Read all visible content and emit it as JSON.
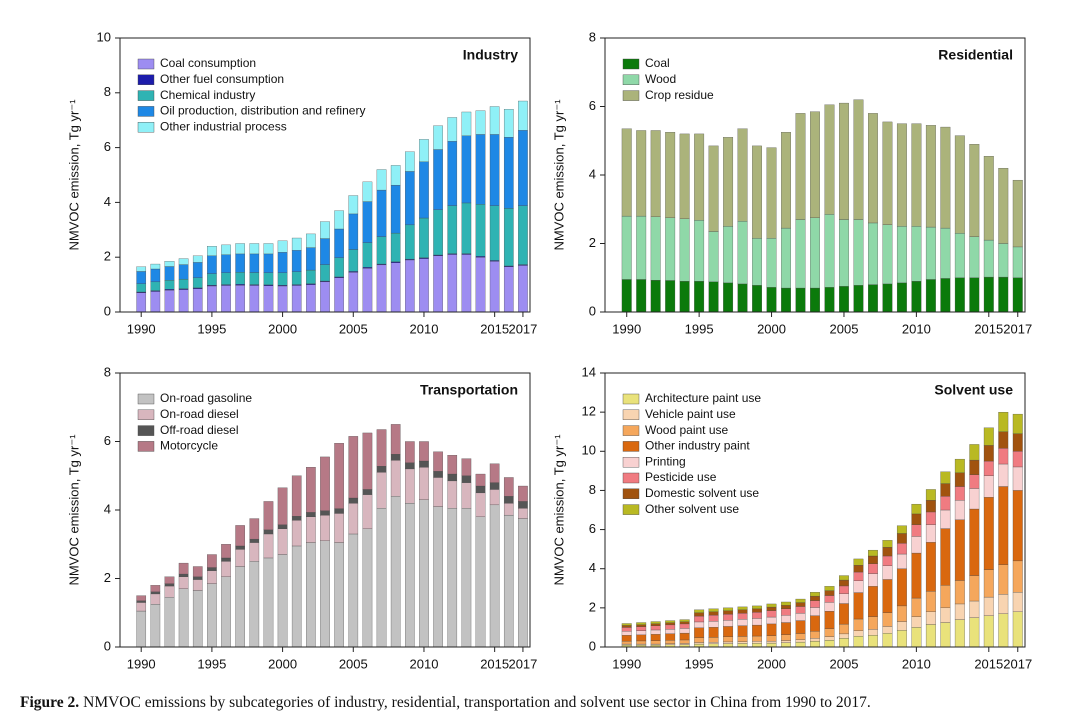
{
  "chart_data": [
    {
      "type": "stacked_bar",
      "title": "Industry",
      "ylabel": "NMVOC emission, Tg yr⁻¹",
      "x": [
        1990,
        1991,
        1992,
        1993,
        1994,
        1995,
        1996,
        1997,
        1998,
        1999,
        2000,
        2001,
        2002,
        2003,
        2004,
        2005,
        2006,
        2007,
        2008,
        2009,
        2010,
        2011,
        2012,
        2013,
        2014,
        2015,
        2016,
        2017
      ],
      "xlim": [
        1988.5,
        2017.5
      ],
      "xticks": [
        1990,
        1995,
        2000,
        2005,
        2010,
        2015,
        2017
      ],
      "ylim": [
        0,
        10
      ],
      "yticks": [
        0,
        2,
        4,
        6,
        8,
        10
      ],
      "legend": "upper left",
      "series": [
        {
          "name": "Coal consumption",
          "color": "#9d8df1",
          "values": [
            0.7,
            0.75,
            0.8,
            0.82,
            0.85,
            0.95,
            0.97,
            0.98,
            0.97,
            0.96,
            0.95,
            0.97,
            1.0,
            1.1,
            1.25,
            1.45,
            1.6,
            1.72,
            1.8,
            1.9,
            1.95,
            2.05,
            2.1,
            2.1,
            2.0,
            1.85,
            1.65,
            1.7
          ]
        },
        {
          "name": "Other fuel consumption",
          "color": "#1c1cab",
          "values": [
            0.03,
            0.03,
            0.03,
            0.03,
            0.03,
            0.03,
            0.03,
            0.03,
            0.03,
            0.03,
            0.03,
            0.03,
            0.03,
            0.03,
            0.03,
            0.03,
            0.03,
            0.03,
            0.03,
            0.03,
            0.03,
            0.03,
            0.03,
            0.03,
            0.03,
            0.03,
            0.03,
            0.03
          ]
        },
        {
          "name": "Chemical industry",
          "color": "#2fb3b3",
          "values": [
            0.3,
            0.32,
            0.33,
            0.35,
            0.37,
            0.42,
            0.43,
            0.44,
            0.44,
            0.44,
            0.45,
            0.47,
            0.5,
            0.6,
            0.7,
            0.8,
            0.9,
            1.0,
            1.05,
            1.25,
            1.45,
            1.65,
            1.75,
            1.85,
            1.9,
            2.0,
            2.1,
            2.15
          ]
        },
        {
          "name": "Oil production, distribution and refinery",
          "color": "#1e88e5",
          "values": [
            0.45,
            0.47,
            0.5,
            0.53,
            0.56,
            0.65,
            0.66,
            0.67,
            0.68,
            0.69,
            0.75,
            0.78,
            0.82,
            0.95,
            1.05,
            1.3,
            1.5,
            1.7,
            1.75,
            1.95,
            2.05,
            2.2,
            2.35,
            2.45,
            2.55,
            2.6,
            2.6,
            2.75
          ]
        },
        {
          "name": "Other industrial process",
          "color": "#8ff0f7",
          "values": [
            0.17,
            0.18,
            0.19,
            0.22,
            0.24,
            0.35,
            0.36,
            0.38,
            0.38,
            0.38,
            0.42,
            0.45,
            0.5,
            0.62,
            0.67,
            0.67,
            0.72,
            0.75,
            0.72,
            0.72,
            0.82,
            0.87,
            0.87,
            0.87,
            0.87,
            1.02,
            1.02,
            1.07
          ]
        }
      ]
    },
    {
      "type": "stacked_bar",
      "title": "Residential",
      "ylabel": "NMVOC emission, Tg yr⁻¹",
      "x": [
        1990,
        1991,
        1992,
        1993,
        1994,
        1995,
        1996,
        1997,
        1998,
        1999,
        2000,
        2001,
        2002,
        2003,
        2004,
        2005,
        2006,
        2007,
        2008,
        2009,
        2010,
        2011,
        2012,
        2013,
        2014,
        2015,
        2016,
        2017
      ],
      "xlim": [
        1988.5,
        2017.5
      ],
      "xticks": [
        1990,
        1995,
        2000,
        2005,
        2010,
        2015,
        2017
      ],
      "ylim": [
        0,
        8
      ],
      "yticks": [
        0,
        2,
        4,
        6,
        8
      ],
      "legend": "upper left",
      "series": [
        {
          "name": "Coal",
          "color": "#0b7a0b",
          "values": [
            0.95,
            0.95,
            0.93,
            0.92,
            0.9,
            0.9,
            0.88,
            0.85,
            0.82,
            0.78,
            0.72,
            0.7,
            0.7,
            0.7,
            0.72,
            0.75,
            0.78,
            0.8,
            0.82,
            0.85,
            0.9,
            0.95,
            0.98,
            1.0,
            1.0,
            1.02,
            1.02,
            1.0
          ]
        },
        {
          "name": "Wood",
          "color": "#8fd8a8",
          "values": [
            1.85,
            1.85,
            1.85,
            1.83,
            1.82,
            1.78,
            1.47,
            1.65,
            1.83,
            1.37,
            1.43,
            1.75,
            2.0,
            2.05,
            2.13,
            1.95,
            1.92,
            1.8,
            1.73,
            1.65,
            1.6,
            1.53,
            1.47,
            1.3,
            1.2,
            1.08,
            0.98,
            0.9
          ]
        },
        {
          "name": "Crop residue",
          "color": "#abb37b",
          "values": [
            2.55,
            2.5,
            2.52,
            2.5,
            2.48,
            2.52,
            2.5,
            2.6,
            2.7,
            2.7,
            2.65,
            2.8,
            3.1,
            3.1,
            3.2,
            3.4,
            3.5,
            3.2,
            3.0,
            3.0,
            3.0,
            2.97,
            2.95,
            2.85,
            2.7,
            2.45,
            2.2,
            1.95
          ]
        }
      ]
    },
    {
      "type": "stacked_bar",
      "title": "Transportation",
      "ylabel": "NMVOC emission, Tg yr⁻¹",
      "x": [
        1990,
        1991,
        1992,
        1993,
        1994,
        1995,
        1996,
        1997,
        1998,
        1999,
        2000,
        2001,
        2002,
        2003,
        2004,
        2005,
        2006,
        2007,
        2008,
        2009,
        2010,
        2011,
        2012,
        2013,
        2014,
        2015,
        2016,
        2017
      ],
      "xlim": [
        1988.5,
        2017.5
      ],
      "xticks": [
        1990,
        1995,
        2000,
        2005,
        2010,
        2015,
        2017
      ],
      "ylim": [
        0,
        8
      ],
      "yticks": [
        0,
        2,
        4,
        6,
        8
      ],
      "legend": "upper left",
      "series": [
        {
          "name": "On-road gasoline",
          "color": "#c2c2c2",
          "values": [
            1.05,
            1.25,
            1.45,
            1.7,
            1.65,
            1.85,
            2.05,
            2.35,
            2.5,
            2.6,
            2.7,
            2.95,
            3.05,
            3.1,
            3.05,
            3.3,
            3.45,
            4.05,
            4.4,
            4.2,
            4.3,
            4.1,
            4.05,
            4.05,
            3.8,
            4.15,
            3.85,
            3.75
          ]
        },
        {
          "name": "On-road diesel",
          "color": "#d8b6be",
          "values": [
            0.25,
            0.3,
            0.33,
            0.35,
            0.32,
            0.38,
            0.45,
            0.5,
            0.55,
            0.7,
            0.75,
            0.75,
            0.75,
            0.75,
            0.85,
            0.9,
            1.0,
            1.05,
            1.05,
            1.0,
            0.95,
            0.85,
            0.8,
            0.75,
            0.7,
            0.45,
            0.35,
            0.3
          ]
        },
        {
          "name": "Off-road diesel",
          "color": "#555555",
          "values": [
            0.05,
            0.06,
            0.07,
            0.08,
            0.08,
            0.09,
            0.1,
            0.1,
            0.1,
            0.12,
            0.12,
            0.12,
            0.13,
            0.13,
            0.14,
            0.15,
            0.15,
            0.18,
            0.18,
            0.18,
            0.18,
            0.18,
            0.2,
            0.2,
            0.2,
            0.2,
            0.2,
            0.2
          ]
        },
        {
          "name": "Motorcycle",
          "color": "#b67986",
          "values": [
            0.15,
            0.19,
            0.2,
            0.32,
            0.3,
            0.38,
            0.4,
            0.6,
            0.6,
            0.83,
            1.08,
            1.18,
            1.32,
            1.57,
            1.91,
            1.8,
            1.65,
            1.07,
            0.87,
            0.62,
            0.57,
            0.57,
            0.55,
            0.5,
            0.35,
            0.55,
            0.55,
            0.45
          ]
        }
      ]
    },
    {
      "type": "stacked_bar",
      "title": "Solvent use",
      "ylabel": "NMVOC emission, Tg yr⁻¹",
      "x": [
        1990,
        1991,
        1992,
        1993,
        1994,
        1995,
        1996,
        1997,
        1998,
        1999,
        2000,
        2001,
        2002,
        2003,
        2004,
        2005,
        2006,
        2007,
        2008,
        2009,
        2010,
        2011,
        2012,
        2013,
        2014,
        2015,
        2016,
        2017
      ],
      "xlim": [
        1988.5,
        2017.5
      ],
      "xticks": [
        1990,
        1995,
        2000,
        2005,
        2010,
        2015,
        2017
      ],
      "ylim": [
        0,
        14
      ],
      "yticks": [
        0,
        2,
        4,
        6,
        8,
        10,
        12,
        14
      ],
      "legend": "upper left",
      "series": [
        {
          "name": "Architecture paint use",
          "color": "#e9e27b",
          "values": [
            0.1,
            0.1,
            0.1,
            0.11,
            0.12,
            0.15,
            0.16,
            0.17,
            0.18,
            0.19,
            0.2,
            0.22,
            0.25,
            0.3,
            0.35,
            0.45,
            0.55,
            0.6,
            0.7,
            0.85,
            1.0,
            1.15,
            1.25,
            1.4,
            1.5,
            1.6,
            1.7,
            1.8
          ]
        },
        {
          "name": "Vehicle paint use",
          "color": "#f8d4b1",
          "values": [
            0.05,
            0.05,
            0.05,
            0.06,
            0.06,
            0.08,
            0.08,
            0.09,
            0.09,
            0.1,
            0.1,
            0.11,
            0.12,
            0.15,
            0.18,
            0.22,
            0.28,
            0.3,
            0.35,
            0.45,
            0.55,
            0.65,
            0.75,
            0.8,
            0.85,
            0.95,
            1.0,
            1.0
          ]
        },
        {
          "name": "Wood paint use",
          "color": "#f5a75c",
          "values": [
            0.15,
            0.16,
            0.17,
            0.17,
            0.18,
            0.25,
            0.25,
            0.26,
            0.27,
            0.27,
            0.28,
            0.3,
            0.32,
            0.35,
            0.4,
            0.5,
            0.6,
            0.65,
            0.7,
            0.8,
            0.95,
            1.05,
            1.15,
            1.2,
            1.3,
            1.4,
            1.5,
            1.6
          ]
        },
        {
          "name": "Other industry paint",
          "color": "#d9680f",
          "values": [
            0.3,
            0.31,
            0.33,
            0.34,
            0.35,
            0.5,
            0.52,
            0.53,
            0.55,
            0.56,
            0.6,
            0.62,
            0.66,
            0.8,
            0.9,
            1.05,
            1.35,
            1.55,
            1.7,
            1.9,
            2.3,
            2.5,
            2.9,
            3.1,
            3.4,
            3.7,
            4.0,
            3.6
          ]
        },
        {
          "name": "Printing",
          "color": "#f8d1d1",
          "values": [
            0.2,
            0.21,
            0.22,
            0.23,
            0.24,
            0.3,
            0.31,
            0.32,
            0.33,
            0.34,
            0.35,
            0.37,
            0.38,
            0.42,
            0.45,
            0.5,
            0.6,
            0.65,
            0.7,
            0.75,
            0.85,
            0.9,
            0.95,
            1.0,
            1.05,
            1.1,
            1.15,
            1.2
          ]
        },
        {
          "name": "Pesticide use",
          "color": "#f07b81",
          "values": [
            0.2,
            0.21,
            0.22,
            0.22,
            0.23,
            0.3,
            0.31,
            0.31,
            0.31,
            0.32,
            0.33,
            0.33,
            0.34,
            0.35,
            0.35,
            0.4,
            0.45,
            0.5,
            0.5,
            0.55,
            0.6,
            0.65,
            0.7,
            0.7,
            0.7,
            0.75,
            0.8,
            0.8
          ]
        },
        {
          "name": "Domestic solvent use",
          "color": "#a1530f",
          "values": [
            0.1,
            0.1,
            0.1,
            0.11,
            0.11,
            0.17,
            0.17,
            0.17,
            0.17,
            0.17,
            0.18,
            0.18,
            0.2,
            0.23,
            0.25,
            0.3,
            0.35,
            0.4,
            0.45,
            0.5,
            0.55,
            0.6,
            0.65,
            0.7,
            0.75,
            0.8,
            0.85,
            0.9
          ]
        },
        {
          "name": "Other solvent use",
          "color": "#b9b923",
          "values": [
            0.1,
            0.11,
            0.11,
            0.11,
            0.11,
            0.15,
            0.15,
            0.15,
            0.15,
            0.15,
            0.16,
            0.17,
            0.18,
            0.2,
            0.22,
            0.23,
            0.32,
            0.3,
            0.35,
            0.4,
            0.5,
            0.55,
            0.6,
            0.7,
            0.8,
            0.9,
            1.0,
            1.0
          ]
        }
      ]
    }
  ],
  "caption": {
    "label": "Figure 2.",
    "text": "NMVOC emissions by subcategories of industry, residential, transportation and solvent use sector in China from 1990 to 2017."
  }
}
